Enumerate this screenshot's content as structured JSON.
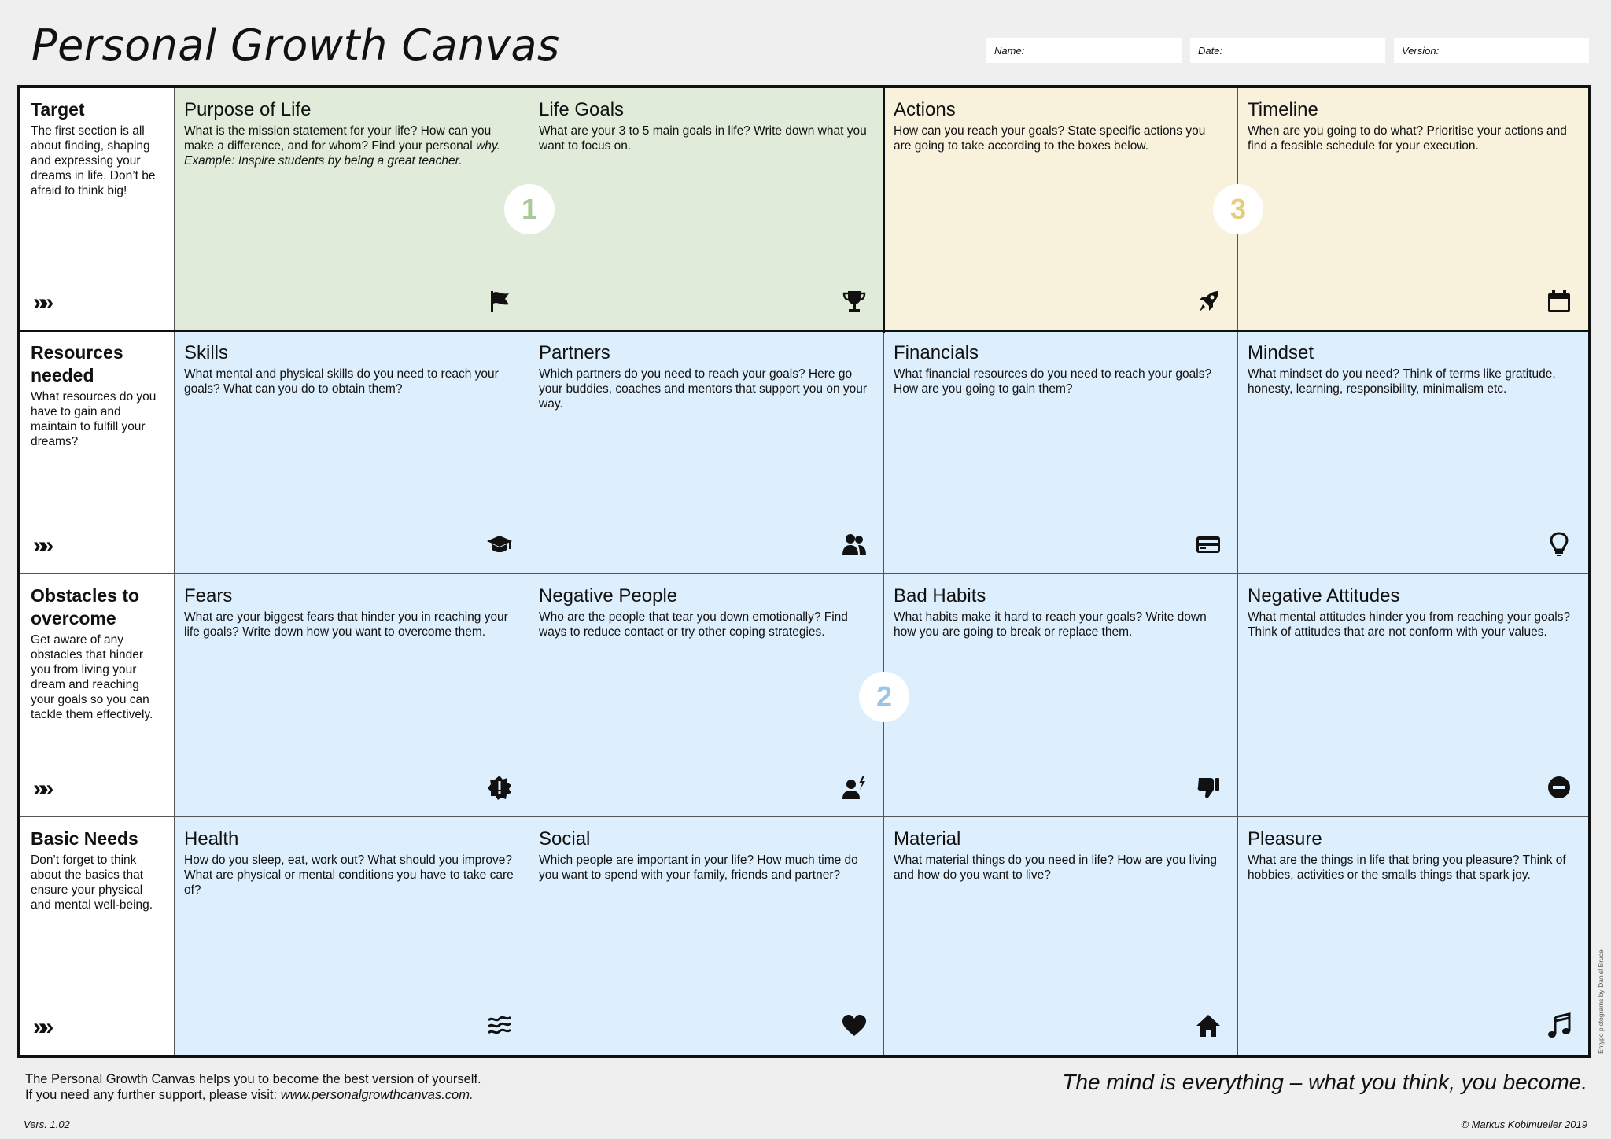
{
  "title": "Personal Growth Canvas",
  "header_fields": {
    "name": "Name:",
    "date": "Date:",
    "version": "Version:"
  },
  "chevron": "»»",
  "rows": [
    {
      "title": "Target",
      "desc": "The first section is all about finding, shaping and expressing your dreams in life. Don’t be afraid to think big!"
    },
    {
      "title": "Resources needed",
      "desc": "What resources do you have to gain and maintain to fulfill your dreams?"
    },
    {
      "title": "Obstacles to overcome",
      "desc": "Get aware of any obstacles that hinder you from living your dream and reaching your goals so you can tackle them effectively."
    },
    {
      "title": "Basic Needs",
      "desc": "Don’t forget to think about the basics that ensure your physical and mental well-being."
    }
  ],
  "cells": [
    {
      "title": "Purpose of Life",
      "desc": "What is the mission statement for your life? How can you make a difference, and for whom? Find your personal",
      "desc_em": "why.",
      "desc_example": "Example: Inspire students by being a great teacher.",
      "icon": "flag-icon",
      "color": "green"
    },
    {
      "title": "Life Goals",
      "desc": "What are your 3 to 5 main goals in life? Write down what you want to focus on.",
      "icon": "trophy-icon",
      "color": "green"
    },
    {
      "title": "Actions",
      "desc": "How can you reach your goals? State specific actions you are going to take according to the boxes below.",
      "icon": "rocket-icon",
      "color": "yellow"
    },
    {
      "title": "Timeline",
      "desc": "When are you going to do what? Prioritise your actions and find a feasible schedule for your execution.",
      "icon": "calendar-icon",
      "color": "yellow"
    },
    {
      "title": "Skills",
      "desc": "What mental and physical skills do you need to reach your goals? What can you do to obtain them?",
      "icon": "graduation-cap-icon",
      "color": "blue"
    },
    {
      "title": "Partners",
      "desc": "Which partners do you need to reach your goals? Here go your buddies, coaches and mentors that support you on your way.",
      "icon": "users-icon",
      "color": "blue"
    },
    {
      "title": "Financials",
      "desc": "What financial resources do you need to reach your goals? How are you going to gain them?",
      "icon": "credit-card-icon",
      "color": "blue"
    },
    {
      "title": "Mindset",
      "desc": "What mindset do you need? Think of terms like gratitude, honesty, learning, responsibility, minimalism etc.",
      "icon": "light-bulb-icon",
      "color": "blue"
    },
    {
      "title": "Fears",
      "desc": "What are your biggest fears that hinder you in reaching your life goals? Write down how you want to overcome them.",
      "icon": "warning-burst-icon",
      "color": "blue"
    },
    {
      "title": "Negative People",
      "desc": "Who are the people that tear you down emotionally? Find ways to reduce contact or try other coping strategies.",
      "icon": "person-lightning-icon",
      "color": "blue"
    },
    {
      "title": "Bad Habits",
      "desc": "What habits make it hard to reach your goals? Write down how you are going to break or replace them.",
      "icon": "thumbs-down-icon",
      "color": "blue"
    },
    {
      "title": "Negative Attitudes",
      "desc": "What mental attitudes hinder you from reaching your goals? Think of attitudes that are not conform with your values.",
      "icon": "minus-circle-icon",
      "color": "blue"
    },
    {
      "title": "Health",
      "desc": "How do you sleep, eat, work out? What should you improve? What are physical or mental conditions you have to take care of?",
      "icon": "water-waves-icon",
      "color": "blue"
    },
    {
      "title": "Social",
      "desc": "Which people are important in your life? How much time do you want to spend with your family, friends and partner?",
      "icon": "heart-icon",
      "color": "blue"
    },
    {
      "title": "Material",
      "desc": "What material things do you need in life? How are you living and how do you want to live?",
      "icon": "home-icon",
      "color": "blue"
    },
    {
      "title": "Pleasure",
      "desc": "What are the things in life that bring you pleasure? Think of hobbies, activities or the smalls things that spark joy.",
      "icon": "music-note-icon",
      "color": "blue"
    }
  ],
  "markers": [
    {
      "label": "1",
      "color": "#a9c99a"
    },
    {
      "label": "2",
      "color": "#9fc3e6"
    },
    {
      "label": "3",
      "color": "#e7cd7b"
    }
  ],
  "footer": {
    "line1": "The Personal Growth Canvas helps you to become the best version of yourself.",
    "line2_prefix": "If you need any further support, please visit:",
    "line2_url": "www.personalgrowthcanvas.com.",
    "quote": "The mind is everything – what you think, you become.",
    "version": "Vers. 1.02",
    "copyright": "© Markus Koblmueller 2019",
    "credit": "Entypo pictograms by Daniel Bruce"
  }
}
